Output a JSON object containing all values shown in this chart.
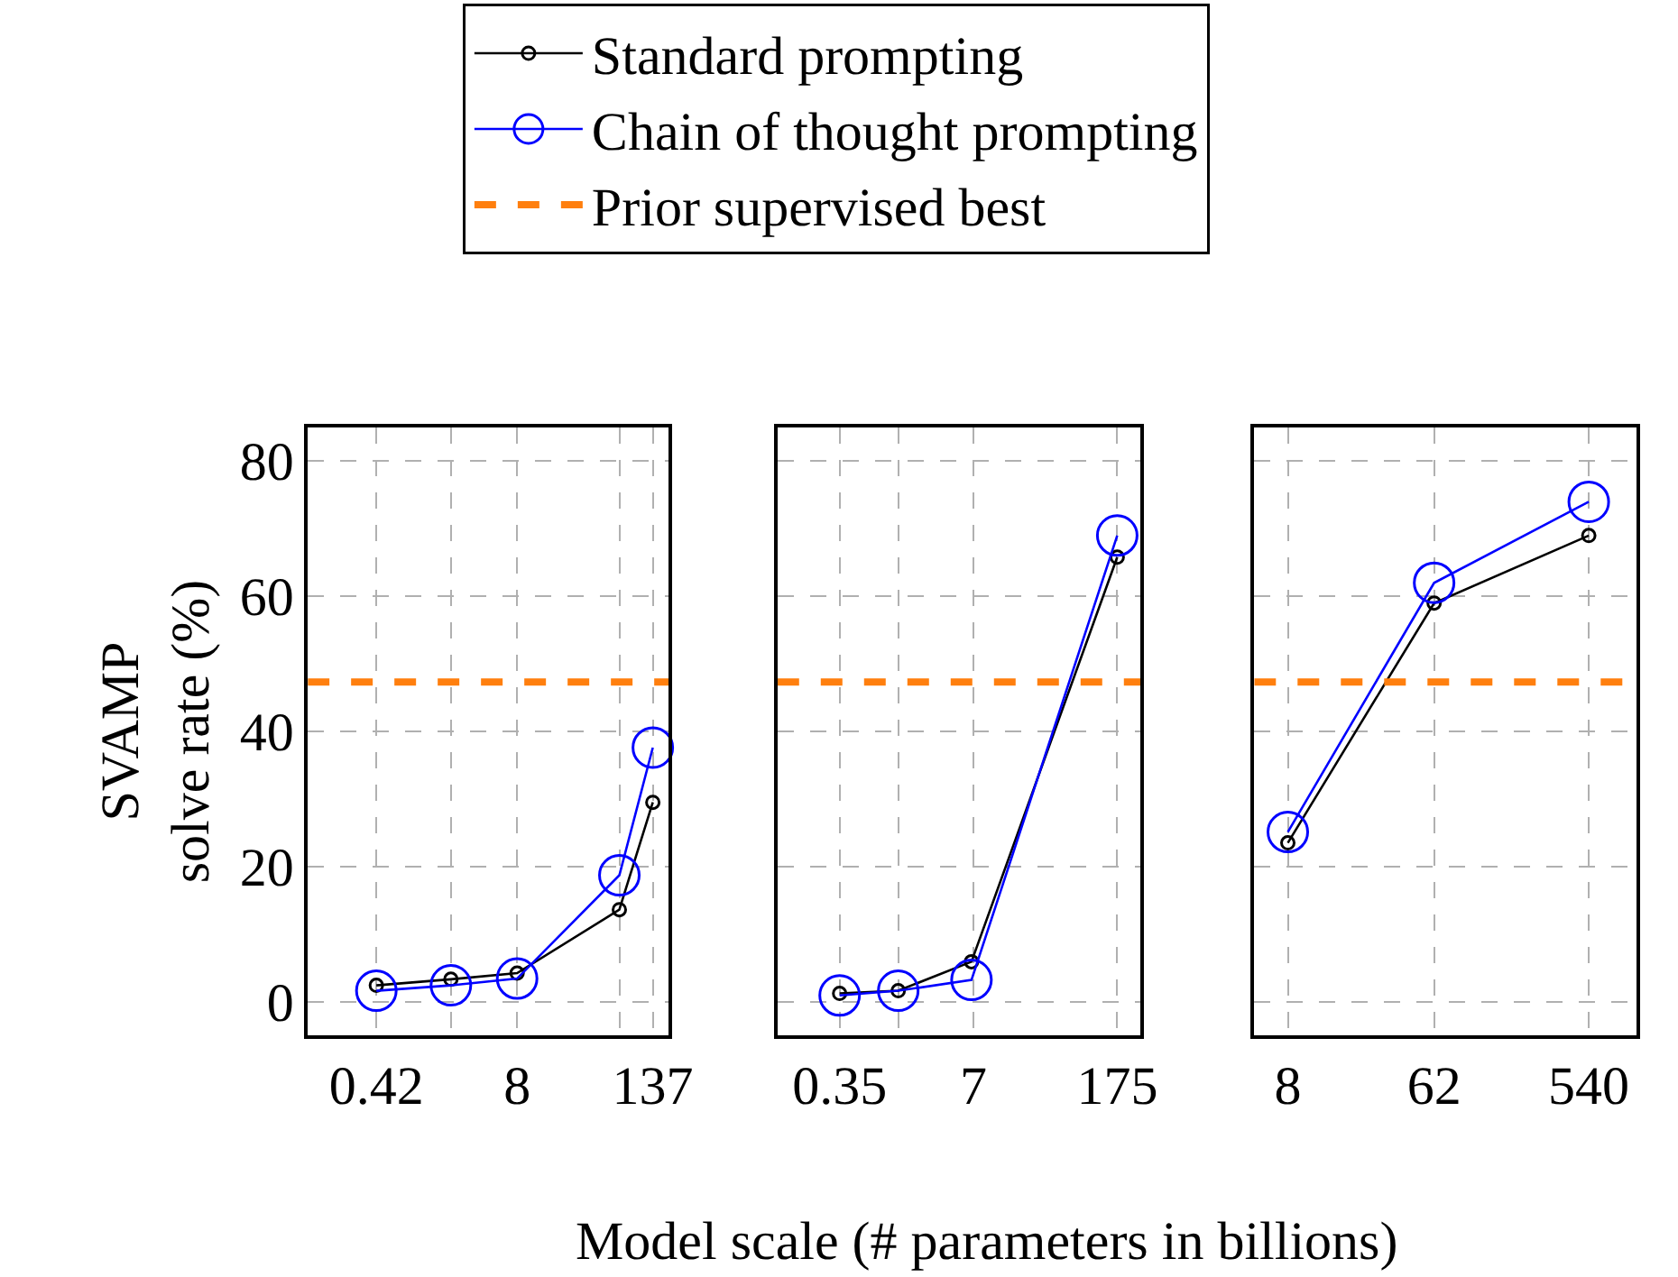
{
  "chart_data": [
    {
      "type": "line",
      "x": [
        0.42,
        2,
        8,
        68,
        137
      ],
      "xlim": [
        0.1,
        192
      ],
      "xticks": [
        0.42,
        {
          "value": 2,
          "label": null
        },
        8,
        {
          "value": 68,
          "label": null
        },
        137
      ],
      "ylim": [
        -5,
        85
      ],
      "yticks": [
        0,
        20,
        40,
        60,
        80
      ],
      "log": "x",
      "grid": true,
      "legend": "top",
      "marker": "circle",
      "line_style": "solid",
      "ylabel": "SVAMP\nsolve rate (%)",
      "series": [
        {
          "name": "Standard prompting",
          "color": "#000000",
          "values": [
            2.4,
            3.3,
            4.2,
            13.6,
            29.5
          ]
        },
        {
          "name": "Chain of thought prompting",
          "color": "#0000ff",
          "values": [
            1.6,
            2.4,
            3.4,
            18.7,
            37.6
          ]
        }
      ],
      "ref_lines": [
        {
          "axis": "y",
          "value": 47.3,
          "label": "Prior supervised best",
          "color": "#ff7f0e",
          "line_style": "dashed"
        }
      ]
    },
    {
      "type": "line",
      "x": [
        0.35,
        1.3,
        6.7,
        175
      ],
      "xlim": [
        0.087,
        294
      ],
      "xticks": [
        0.35,
        {
          "value": 1.3,
          "label": null
        },
        7,
        175
      ],
      "ylim": [
        -5,
        85
      ],
      "yticks": [
        0,
        20,
        40,
        60,
        80
      ],
      "log": "x",
      "grid": true,
      "legend": "top",
      "marker": "circle",
      "line_style": "solid",
      "tick_labels": "x",
      "xlabel": "Model scale (# parameters in billions)",
      "series": [
        {
          "color": "#000000",
          "values": [
            1.2,
            1.6,
            5.9,
            65.8
          ]
        },
        {
          "color": "#0000ff",
          "values": [
            0.9,
            1.6,
            3.2,
            69.0
          ]
        }
      ],
      "ref_lines": [
        {
          "axis": "y",
          "value": 47.3,
          "color": "#ff7f0e",
          "line_style": "dashed"
        }
      ]
    },
    {
      "type": "line",
      "x": [
        8,
        62,
        540
      ],
      "xlim": [
        5,
        1057
      ],
      "xticks": [
        8,
        62,
        540
      ],
      "ylim": [
        -5,
        85
      ],
      "yticks": [
        0,
        20,
        40,
        60,
        80
      ],
      "log": "x",
      "grid": true,
      "legend": "top",
      "marker": "circle",
      "line_style": "solid",
      "tick_labels": "x",
      "series": [
        {
          "color": "#000000",
          "values": [
            23.5,
            59.0,
            69.0
          ]
        },
        {
          "color": "#0000ff",
          "values": [
            25.1,
            62.0,
            74.0
          ]
        }
      ],
      "ref_lines": [
        {
          "axis": "y",
          "value": 47.3,
          "color": "#ff7f0e",
          "line_style": "dashed"
        }
      ]
    }
  ]
}
